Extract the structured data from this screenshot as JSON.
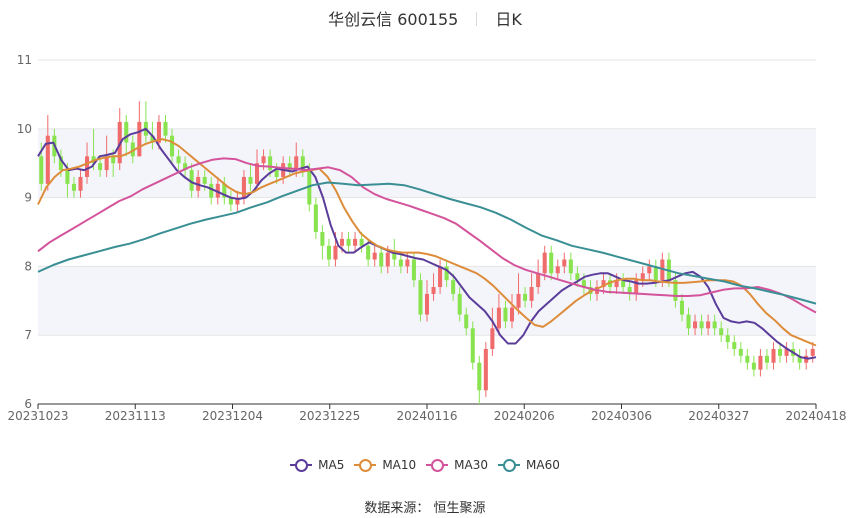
{
  "header": {
    "name": "华创云信 600155",
    "period": "日K"
  },
  "legend": [
    {
      "label": "MA5",
      "color": "#5b3c9a"
    },
    {
      "label": "MA10",
      "color": "#dd8c3a"
    },
    {
      "label": "MA30",
      "color": "#d4549c"
    },
    {
      "label": "MA60",
      "color": "#3a8f94"
    }
  ],
  "source": "数据来源： 恒生聚源",
  "colors": {
    "up": "#f06b6b",
    "down": "#88e34f",
    "grid": "#e6e6e6",
    "band": "#f4f5fb"
  },
  "chart_data": {
    "type": "candlestick",
    "ylim": [
      6,
      11
    ],
    "yticks": [
      6,
      7,
      8,
      9,
      10,
      11
    ],
    "xtick_labels": [
      "20231023",
      "20231113",
      "20231204",
      "20231225",
      "20240116",
      "20240206",
      "20240306",
      "20240327",
      "20240418"
    ],
    "dates_count": 119,
    "candles": [
      [
        9.6,
        9.2,
        9.8,
        9.1
      ],
      [
        9.2,
        9.9,
        10.2,
        9.1
      ],
      [
        9.9,
        9.6,
        10.0,
        9.5
      ],
      [
        9.6,
        9.4,
        9.7,
        9.3
      ],
      [
        9.4,
        9.2,
        9.5,
        9.0
      ],
      [
        9.2,
        9.1,
        9.3,
        9.0
      ],
      [
        9.1,
        9.3,
        9.4,
        9.0
      ],
      [
        9.3,
        9.6,
        9.8,
        9.2
      ],
      [
        9.6,
        9.5,
        10.0,
        9.4
      ],
      [
        9.5,
        9.4,
        9.6,
        9.3
      ],
      [
        9.4,
        9.6,
        9.9,
        9.3
      ],
      [
        9.6,
        9.5,
        9.7,
        9.3
      ],
      [
        9.5,
        10.1,
        10.3,
        9.4
      ],
      [
        10.1,
        9.8,
        10.2,
        9.6
      ],
      [
        9.8,
        9.6,
        9.9,
        9.5
      ],
      [
        9.6,
        10.1,
        10.4,
        9.6
      ],
      [
        10.1,
        9.9,
        10.4,
        9.8
      ],
      [
        9.9,
        9.8,
        10.1,
        9.7
      ],
      [
        9.8,
        10.1,
        10.2,
        9.7
      ],
      [
        10.1,
        9.9,
        10.2,
        9.8
      ],
      [
        9.9,
        9.6,
        10.0,
        9.5
      ],
      [
        9.6,
        9.5,
        9.7,
        9.4
      ],
      [
        9.5,
        9.4,
        9.6,
        9.3
      ],
      [
        9.4,
        9.1,
        9.5,
        9.0
      ],
      [
        9.1,
        9.3,
        9.4,
        9.0
      ],
      [
        9.3,
        9.2,
        9.4,
        9.1
      ],
      [
        9.2,
        9.0,
        9.3,
        8.9
      ],
      [
        9.0,
        9.2,
        9.3,
        8.9
      ],
      [
        9.2,
        9.0,
        9.3,
        8.9
      ],
      [
        9.0,
        8.9,
        9.1,
        8.8
      ],
      [
        8.9,
        9.0,
        9.1,
        8.8
      ],
      [
        9.0,
        9.3,
        9.4,
        8.9
      ],
      [
        9.3,
        9.2,
        9.5,
        9.1
      ],
      [
        9.2,
        9.5,
        9.7,
        9.1
      ],
      [
        9.5,
        9.6,
        9.7,
        9.4
      ],
      [
        9.6,
        9.4,
        9.7,
        9.3
      ],
      [
        9.4,
        9.3,
        9.5,
        9.2
      ],
      [
        9.3,
        9.5,
        9.6,
        9.2
      ],
      [
        9.5,
        9.4,
        9.6,
        9.3
      ],
      [
        9.4,
        9.6,
        9.8,
        9.3
      ],
      [
        9.6,
        9.4,
        9.7,
        9.3
      ],
      [
        9.4,
        8.9,
        9.5,
        8.8
      ],
      [
        8.9,
        8.5,
        9.0,
        8.4
      ],
      [
        8.5,
        8.3,
        8.6,
        8.1
      ],
      [
        8.3,
        8.1,
        8.4,
        8.0
      ],
      [
        8.1,
        8.3,
        8.5,
        8.0
      ],
      [
        8.3,
        8.4,
        8.5,
        8.2
      ],
      [
        8.4,
        8.3,
        8.5,
        8.2
      ],
      [
        8.3,
        8.4,
        8.5,
        8.2
      ],
      [
        8.4,
        8.3,
        8.5,
        8.2
      ],
      [
        8.3,
        8.1,
        8.4,
        8.0
      ],
      [
        8.1,
        8.2,
        8.3,
        8.0
      ],
      [
        8.2,
        8.0,
        8.3,
        7.9
      ],
      [
        8.0,
        8.2,
        8.3,
        7.9
      ],
      [
        8.2,
        8.1,
        8.4,
        8.0
      ],
      [
        8.1,
        8.0,
        8.2,
        7.9
      ],
      [
        8.0,
        8.1,
        8.2,
        7.9
      ],
      [
        8.1,
        7.8,
        8.2,
        7.7
      ],
      [
        7.8,
        7.3,
        7.9,
        7.2
      ],
      [
        7.3,
        7.6,
        7.8,
        7.2
      ],
      [
        7.6,
        7.7,
        7.9,
        7.5
      ],
      [
        7.7,
        8.0,
        8.1,
        7.6
      ],
      [
        8.0,
        7.8,
        8.1,
        7.7
      ],
      [
        7.8,
        7.6,
        7.9,
        7.5
      ],
      [
        7.6,
        7.3,
        7.7,
        7.2
      ],
      [
        7.3,
        7.1,
        7.4,
        7.0
      ],
      [
        7.1,
        6.6,
        7.2,
        6.5
      ],
      [
        6.6,
        6.2,
        6.7,
        6.0
      ],
      [
        6.2,
        6.8,
        6.9,
        6.1
      ],
      [
        6.8,
        7.1,
        7.4,
        6.7
      ],
      [
        7.1,
        7.4,
        7.6,
        7.0
      ],
      [
        7.4,
        7.2,
        7.5,
        7.1
      ],
      [
        7.2,
        7.4,
        7.6,
        7.1
      ],
      [
        7.4,
        7.6,
        7.9,
        7.3
      ],
      [
        7.6,
        7.5,
        7.7,
        7.4
      ],
      [
        7.5,
        7.7,
        7.9,
        7.4
      ],
      [
        7.7,
        7.9,
        8.1,
        7.6
      ],
      [
        7.9,
        8.2,
        8.3,
        7.8
      ],
      [
        8.2,
        7.9,
        8.3,
        7.8
      ],
      [
        7.9,
        8.0,
        8.1,
        7.8
      ],
      [
        8.0,
        8.1,
        8.2,
        7.9
      ],
      [
        8.1,
        7.9,
        8.2,
        7.8
      ],
      [
        7.9,
        7.8,
        8.0,
        7.7
      ],
      [
        7.8,
        7.7,
        7.9,
        7.6
      ],
      [
        7.7,
        7.6,
        7.8,
        7.5
      ],
      [
        7.6,
        7.7,
        7.8,
        7.5
      ],
      [
        7.7,
        7.8,
        7.9,
        7.6
      ],
      [
        7.8,
        7.7,
        7.9,
        7.6
      ],
      [
        7.7,
        7.8,
        7.9,
        7.6
      ],
      [
        7.8,
        7.7,
        7.9,
        7.6
      ],
      [
        7.7,
        7.6,
        7.8,
        7.5
      ],
      [
        7.6,
        7.8,
        7.9,
        7.5
      ],
      [
        7.8,
        7.9,
        8.0,
        7.7
      ],
      [
        7.9,
        8.0,
        8.1,
        7.8
      ],
      [
        8.0,
        7.8,
        8.1,
        7.7
      ],
      [
        7.8,
        8.1,
        8.2,
        7.7
      ],
      [
        8.1,
        7.8,
        8.2,
        7.7
      ],
      [
        7.8,
        7.5,
        7.9,
        7.4
      ],
      [
        7.5,
        7.3,
        7.6,
        7.2
      ],
      [
        7.3,
        7.1,
        7.4,
        7.0
      ],
      [
        7.1,
        7.2,
        7.3,
        7.0
      ],
      [
        7.2,
        7.1,
        7.3,
        7.0
      ],
      [
        7.1,
        7.2,
        7.3,
        7.0
      ],
      [
        7.2,
        7.1,
        7.3,
        7.0
      ],
      [
        7.1,
        7.0,
        7.2,
        6.9
      ],
      [
        7.0,
        6.9,
        7.1,
        6.8
      ],
      [
        6.9,
        6.8,
        7.0,
        6.7
      ],
      [
        6.8,
        6.7,
        6.9,
        6.6
      ],
      [
        6.7,
        6.6,
        6.8,
        6.5
      ],
      [
        6.6,
        6.5,
        6.7,
        6.4
      ],
      [
        6.5,
        6.7,
        6.8,
        6.4
      ],
      [
        6.7,
        6.6,
        6.8,
        6.5
      ],
      [
        6.6,
        6.8,
        6.9,
        6.5
      ],
      [
        6.8,
        6.7,
        6.9,
        6.6
      ],
      [
        6.7,
        6.8,
        6.9,
        6.6
      ],
      [
        6.8,
        6.7,
        6.9,
        6.6
      ],
      [
        6.7,
        6.6,
        6.8,
        6.5
      ],
      [
        6.6,
        6.7,
        6.8,
        6.5
      ],
      [
        6.7,
        6.8,
        6.9,
        6.6
      ]
    ],
    "series": [
      {
        "name": "MA5",
        "color": "#5b3c9a",
        "values": [
          9.6,
          9.78,
          9.8,
          9.55,
          9.4,
          9.42,
          9.4,
          9.45,
          9.6,
          9.62,
          9.65,
          9.85,
          9.92,
          9.95,
          10.0,
          9.88,
          9.7,
          9.55,
          9.4,
          9.3,
          9.22,
          9.18,
          9.15,
          9.1,
          9.05,
          9.0,
          8.98,
          9.0,
          9.1,
          9.25,
          9.35,
          9.42,
          9.4,
          9.38,
          9.42,
          9.45,
          9.3,
          9.0,
          8.6,
          8.3,
          8.2,
          8.2,
          8.28,
          8.35,
          8.3,
          8.25,
          8.2,
          8.18,
          8.15,
          8.12,
          8.1,
          8.05,
          8.0,
          7.95,
          7.85,
          7.7,
          7.55,
          7.45,
          7.35,
          7.2,
          7.0,
          6.88,
          6.88,
          7.0,
          7.2,
          7.35,
          7.45,
          7.55,
          7.65,
          7.72,
          7.78,
          7.85,
          7.88,
          7.9,
          7.9,
          7.85,
          7.8,
          7.78,
          7.75,
          7.75,
          7.76,
          7.78,
          7.8,
          7.85,
          7.9,
          7.92,
          7.85,
          7.7,
          7.45,
          7.25,
          7.2,
          7.18,
          7.2,
          7.18,
          7.1,
          7.0,
          6.9,
          6.82,
          6.75,
          6.68,
          6.66,
          6.68
        ]
      },
      {
        "name": "MA10",
        "color": "#dd8c3a",
        "values": [
          8.9,
          9.15,
          9.3,
          9.4,
          9.42,
          9.45,
          9.5,
          9.55,
          9.58,
          9.6,
          9.6,
          9.65,
          9.72,
          9.78,
          9.82,
          9.85,
          9.82,
          9.75,
          9.65,
          9.55,
          9.45,
          9.35,
          9.25,
          9.15,
          9.08,
          9.05,
          9.08,
          9.15,
          9.2,
          9.25,
          9.3,
          9.35,
          9.38,
          9.4,
          9.42,
          9.3,
          9.1,
          8.85,
          8.65,
          8.48,
          8.38,
          8.3,
          8.25,
          8.22,
          8.2,
          8.2,
          8.2,
          8.18,
          8.15,
          8.1,
          8.05,
          8.0,
          7.95,
          7.9,
          7.82,
          7.72,
          7.6,
          7.48,
          7.36,
          7.25,
          7.15,
          7.12,
          7.2,
          7.3,
          7.4,
          7.5,
          7.58,
          7.65,
          7.7,
          7.76,
          7.8,
          7.82,
          7.82,
          7.8,
          7.8,
          7.78,
          7.77,
          7.76,
          7.76,
          7.77,
          7.78,
          7.8,
          7.8,
          7.8,
          7.78,
          7.72,
          7.6,
          7.45,
          7.32,
          7.22,
          7.1,
          7.0,
          6.95,
          6.9,
          6.85
        ]
      },
      {
        "name": "MA30",
        "color": "#d4549c",
        "values": [
          8.22,
          8.35,
          8.45,
          8.55,
          8.65,
          8.75,
          8.85,
          8.95,
          9.02,
          9.12,
          9.2,
          9.28,
          9.36,
          9.44,
          9.5,
          9.55,
          9.57,
          9.56,
          9.5,
          9.46,
          9.45,
          9.43,
          9.42,
          9.4,
          9.42,
          9.44,
          9.4,
          9.3,
          9.15,
          9.05,
          8.98,
          8.93,
          8.88,
          8.82,
          8.76,
          8.7,
          8.62,
          8.5,
          8.38,
          8.25,
          8.12,
          8.02,
          7.95,
          7.9,
          7.85,
          7.8,
          7.75,
          7.7,
          7.66,
          7.63,
          7.62,
          7.61,
          7.6,
          7.59,
          7.58,
          7.57,
          7.57,
          7.58,
          7.62,
          7.66,
          7.68,
          7.68,
          7.7,
          7.66,
          7.6,
          7.52,
          7.42,
          7.33
        ]
      },
      {
        "name": "MA60",
        "color": "#3a8f94",
        "values": [
          7.92,
          8.02,
          8.1,
          8.16,
          8.22,
          8.28,
          8.33,
          8.4,
          8.48,
          8.55,
          8.62,
          8.68,
          8.73,
          8.78,
          8.86,
          8.93,
          9.02,
          9.1,
          9.18,
          9.22,
          9.2,
          9.18,
          9.19,
          9.2,
          9.18,
          9.12,
          9.05,
          8.98,
          8.92,
          8.86,
          8.78,
          8.68,
          8.56,
          8.45,
          8.38,
          8.3,
          8.25,
          8.2,
          8.14,
          8.08,
          8.02,
          7.96,
          7.9,
          7.86,
          7.82,
          7.78,
          7.72,
          7.68,
          7.63,
          7.58,
          7.52,
          7.46
        ]
      }
    ]
  }
}
